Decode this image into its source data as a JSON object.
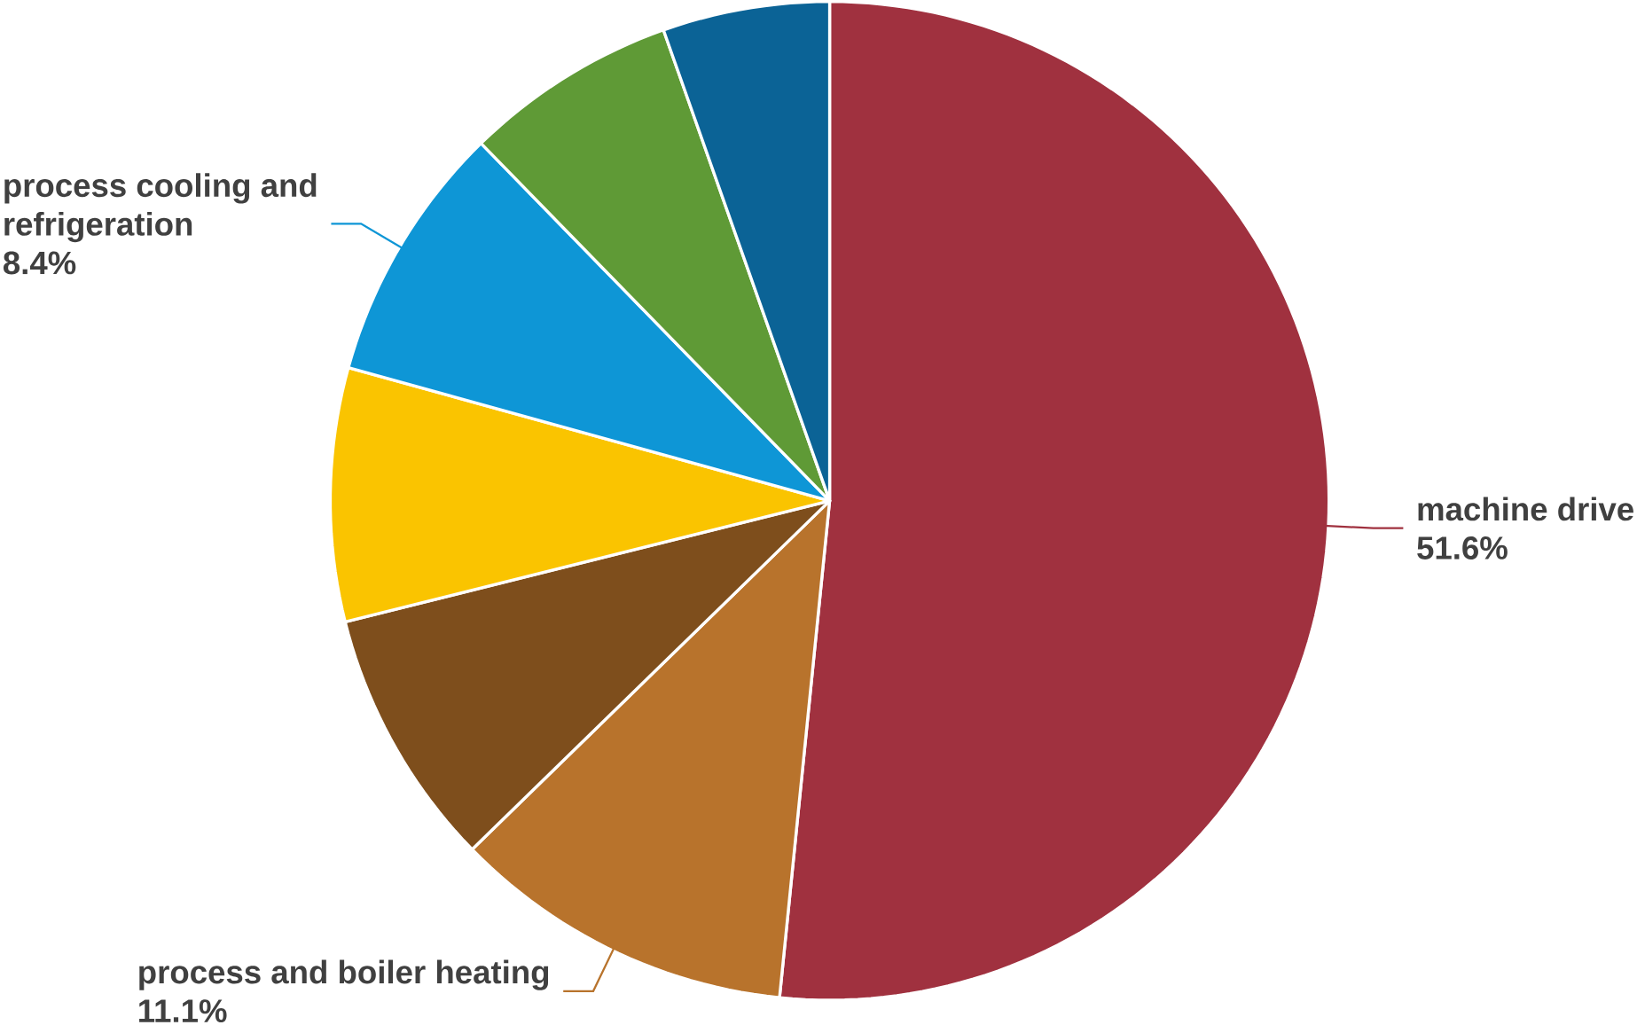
{
  "chart_data": {
    "type": "pie",
    "categories": [
      "machine drive",
      "process and boiler heating",
      null,
      null,
      "process cooling and refrigeration",
      null,
      null
    ],
    "values": [
      51.6,
      11.1,
      8.4,
      8.2,
      8.4,
      6.9,
      5.4
    ],
    "value_labels": [
      "51.6%",
      "11.1%",
      null,
      null,
      "8.4%",
      null,
      null
    ],
    "colors": [
      "#a0313f",
      "#b8732c",
      "#7e4e1c",
      "#fac400",
      "#0e96d6",
      "#5f9a36",
      "#0b6396"
    ]
  }
}
